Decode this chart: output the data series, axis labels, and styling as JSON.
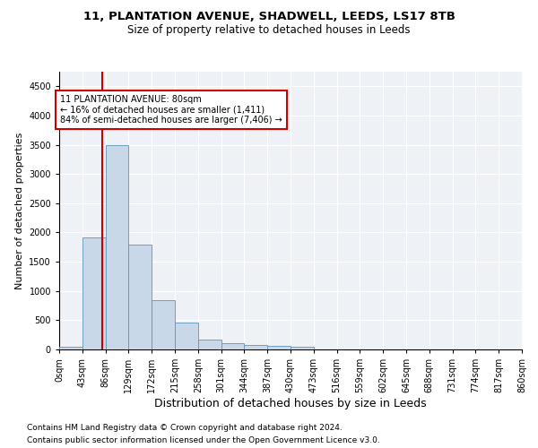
{
  "title1": "11, PLANTATION AVENUE, SHADWELL, LEEDS, LS17 8TB",
  "title2": "Size of property relative to detached houses in Leeds",
  "xlabel": "Distribution of detached houses by size in Leeds",
  "ylabel": "Number of detached properties",
  "footnote1": "Contains HM Land Registry data © Crown copyright and database right 2024.",
  "footnote2": "Contains public sector information licensed under the Open Government Licence v3.0.",
  "bin_edges": [
    0,
    43,
    86,
    129,
    172,
    215,
    258,
    301,
    344,
    387,
    430,
    473,
    516,
    559,
    602,
    645,
    688,
    731,
    774,
    817,
    860
  ],
  "bin_labels": [
    "0sqm",
    "43sqm",
    "86sqm",
    "129sqm",
    "172sqm",
    "215sqm",
    "258sqm",
    "301sqm",
    "344sqm",
    "387sqm",
    "430sqm",
    "473sqm",
    "516sqm",
    "559sqm",
    "602sqm",
    "645sqm",
    "688sqm",
    "731sqm",
    "774sqm",
    "817sqm",
    "860sqm"
  ],
  "bar_heights": [
    50,
    1920,
    3500,
    1790,
    840,
    460,
    165,
    100,
    70,
    60,
    40,
    0,
    0,
    0,
    0,
    0,
    0,
    0,
    0,
    0
  ],
  "bar_color": "#c8d8e8",
  "bar_edge_color": "#5f96b8",
  "property_line_x": 80,
  "annotation_line1": "11 PLANTATION AVENUE: 80sqm",
  "annotation_line2": "← 16% of detached houses are smaller (1,411)",
  "annotation_line3": "84% of semi-detached houses are larger (7,406) →",
  "annotation_box_color": "#cc0000",
  "line_color": "#cc0000",
  "ylim": [
    0,
    4750
  ],
  "yticks": [
    0,
    500,
    1000,
    1500,
    2000,
    2500,
    3000,
    3500,
    4000,
    4500
  ],
  "bg_color": "#eef2f7",
  "grid_color": "#ffffff",
  "title1_fontsize": 9.5,
  "title2_fontsize": 8.5,
  "axis_label_fontsize": 8,
  "tick_fontsize": 7,
  "annotation_fontsize": 7,
  "footnote_fontsize": 6.5
}
